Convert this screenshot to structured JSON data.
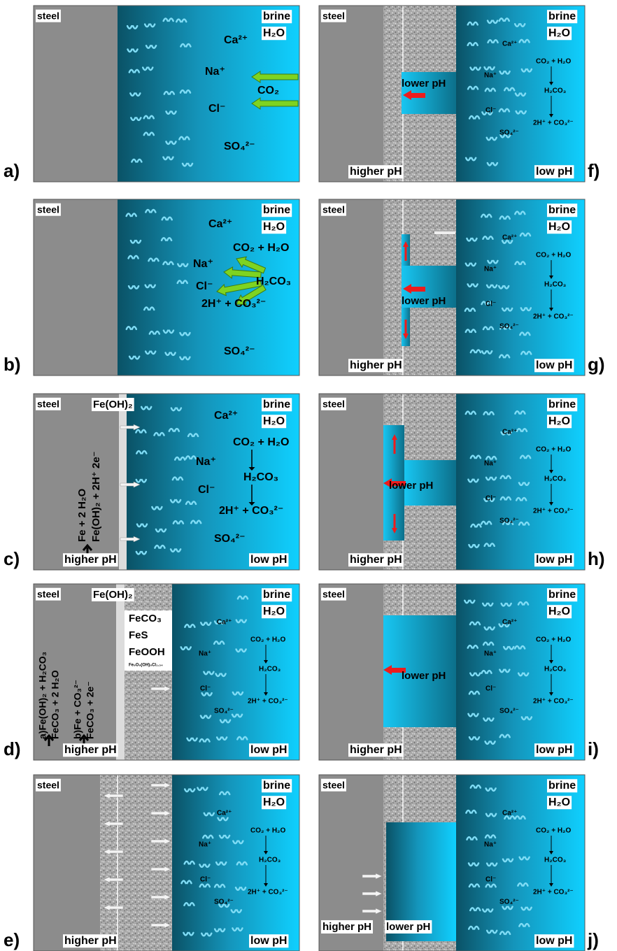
{
  "panels": [
    {
      "label": "a)",
      "texts": [
        "steel",
        "brine",
        "H₂O",
        "Ca²⁺",
        "Na⁺",
        "CO₂",
        "Cl⁻",
        "SO₄²⁻"
      ]
    },
    {
      "label": "b)",
      "texts": [
        "steel",
        "brine",
        "H₂O",
        "Ca²⁺",
        "CO₂ + H₂O",
        "Na⁺",
        "H₂CO₃",
        "Cl⁻",
        "2H⁺ + CO₃²⁻",
        "SO₄²⁻"
      ]
    },
    {
      "label": "c)",
      "texts": [
        "steel",
        "Fe(OH)₂",
        "brine",
        "H₂O",
        "Ca²⁺",
        "CO₂ + H₂O",
        "Na⁺",
        "H₂CO₃",
        "Cl⁻",
        "2H⁺ + CO₃²⁻",
        "SO₄²⁻",
        "Fe + 2 H₂O",
        "Fe(OH)₂ + 2H⁺ 2e⁻",
        "higher pH",
        "low pH"
      ]
    },
    {
      "label": "d)",
      "texts": [
        "steel",
        "brine",
        "H₂O",
        "Ca²⁺",
        "Na⁺",
        "Cl⁻",
        "SO₄²⁻",
        "CO₂ + H₂O",
        "H₂CO₃",
        "2H⁺ + CO₃²⁻",
        "higher pH",
        "low pH",
        "Fe(OH)₂",
        "FeCO₃",
        "FeS",
        "FeOOH",
        "Fe₈O₈(OH)₈Cl₁.₃₄",
        "a)Fe(OH)₂ + H₂CO₃",
        "FeCO₃ + 2 H₂O",
        "b)Fe + CO₃²⁻",
        "FeCO₃ + 2e⁻"
      ]
    },
    {
      "label": "e)",
      "texts": [
        "steel",
        "brine",
        "H₂O",
        "Ca²⁺",
        "Na⁺",
        "Cl⁻",
        "SO₄²⁻",
        "CO₂ + H₂O",
        "H₂CO₃",
        "2H⁺ + CO₃²⁻",
        "higher pH",
        "low pH"
      ]
    },
    {
      "label": "f)",
      "texts": [
        "steel",
        "brine",
        "H₂O",
        "Ca²⁺",
        "Na⁺",
        "Cl⁻",
        "SO₄²⁻",
        "CO₂ + H₂O",
        "H₂CO₃",
        "2H⁺ + CO₃²⁻",
        "higher pH",
        "low pH",
        "lower pH"
      ]
    },
    {
      "label": "g)",
      "texts": [
        "steel",
        "brine",
        "H₂O",
        "Ca²⁺",
        "Na⁺",
        "Cl⁻",
        "SO₄²⁻",
        "CO₂ + H₂O",
        "H₂CO₃",
        "2H⁺ + CO₃²⁻",
        "higher pH",
        "low pH",
        "lower pH"
      ]
    },
    {
      "label": "h)",
      "texts": [
        "steel",
        "brine",
        "H₂O",
        "Ca²⁺",
        "Na⁺",
        "Cl⁻",
        "SO₄²⁻",
        "CO₂ + H₂O",
        "H₂CO₃",
        "2H⁺ + CO₃²⁻",
        "higher pH",
        "low pH",
        "lower pH"
      ]
    },
    {
      "label": "i)",
      "texts": [
        "steel",
        "brine",
        "H₂O",
        "Ca²⁺",
        "Na⁺",
        "Cl⁻",
        "SO₄²⁻",
        "CO₂ + H₂O",
        "H₂CO₃",
        "2H⁺ + CO₃²⁻",
        "higher pH",
        "low pH",
        "lower pH"
      ]
    },
    {
      "label": "j)",
      "texts": [
        "steel",
        "brine",
        "H₂O",
        "Ca²⁺",
        "Na⁺",
        "Cl⁻",
        "SO₄²⁻",
        "CO₂ + H₂O",
        "H₂CO₃",
        "2H⁺ + CO₃²⁻",
        "higher pH",
        "low pH",
        "lower pH"
      ]
    }
  ]
}
